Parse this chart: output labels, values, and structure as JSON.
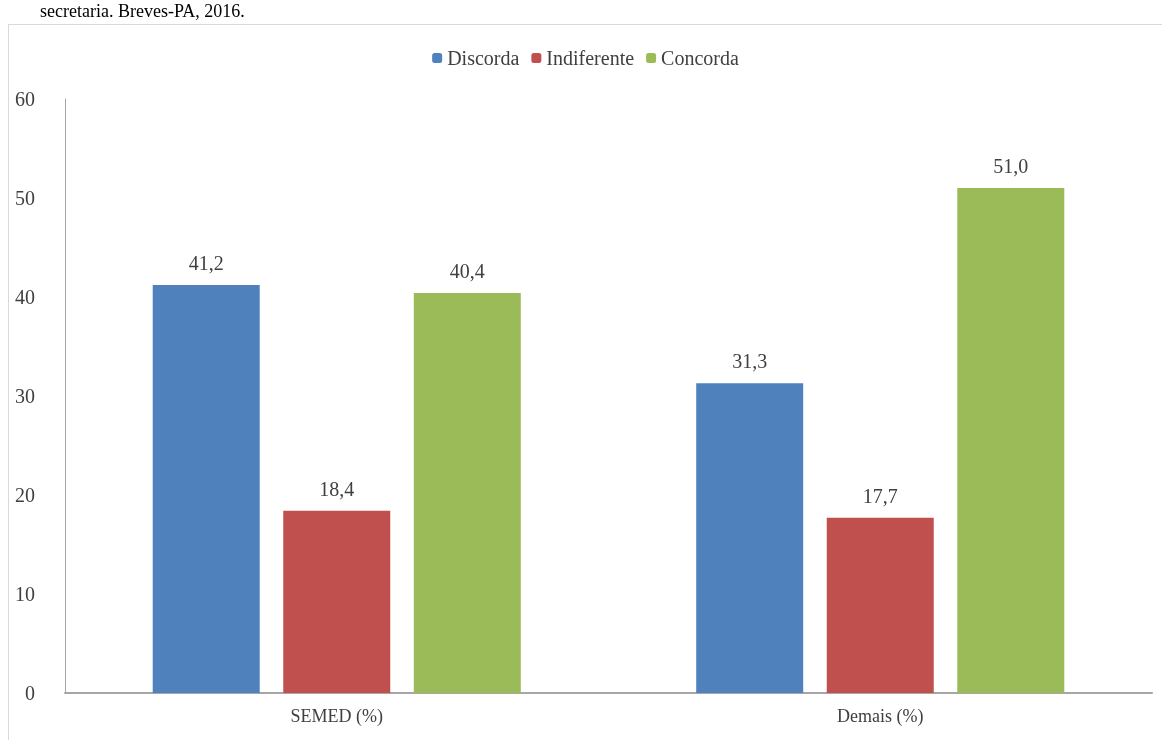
{
  "chart_data": {
    "type": "bar",
    "categories": [
      "SEMED (%)",
      "Demais (%)"
    ],
    "series": [
      {
        "name": "Discorda",
        "color": "#4f81bd",
        "values": [
          41.2,
          31.3
        ],
        "value_labels": [
          "41,2",
          "31,3"
        ]
      },
      {
        "name": "Indiferente",
        "color": "#c0504d",
        "values": [
          18.4,
          17.7
        ],
        "value_labels": [
          "18,4",
          "17,7"
        ]
      },
      {
        "name": "Concorda",
        "color": "#9bbb59",
        "values": [
          40.4,
          51.0
        ],
        "value_labels": [
          "40,4",
          "51,0"
        ]
      }
    ],
    "ylim": [
      0,
      60
    ],
    "yticks": [
      0,
      10,
      20,
      30,
      40,
      50,
      60
    ],
    "grid": false,
    "legend": "top",
    "annotations": [
      "secretaria. Breves-PA, 2016."
    ]
  }
}
